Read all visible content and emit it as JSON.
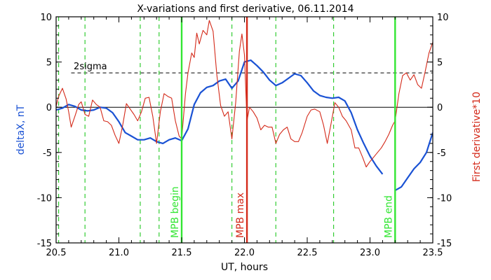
{
  "chart_data": {
    "type": "line",
    "title": "X-variations and first derivative, 06.11.2014",
    "xlabel": "UT, hours",
    "ylabel_left": "deltaX, nT",
    "ylabel_right": "First derivative*10",
    "xlim": [
      20.5,
      23.5
    ],
    "ylim": [
      -15,
      10
    ],
    "x_ticks": [
      "20.5",
      "21.0",
      "21.5",
      "22.0",
      "22.5",
      "23.0",
      "23.5"
    ],
    "y_ticks_left": [
      "10",
      "5",
      "0",
      "-5",
      "-10",
      "-15"
    ],
    "y_ticks_right": [
      "10",
      "5",
      "0",
      "-5",
      "-10",
      "-15"
    ],
    "sigma_level": 3.8,
    "sigma_label": "2sigma",
    "zero_line": 0,
    "colors": {
      "deltaX": "#1a52d4",
      "derivative": "#d42a1a",
      "mpb_boundary": "#33e633",
      "mpb_max": "#d42a1a",
      "substorm_marks": "#33cc33",
      "axes": "#000000"
    },
    "dashed_markers": [
      20.52,
      20.73,
      21.17,
      21.32,
      21.9,
      22.25,
      22.71
    ],
    "vertical_lines": [
      {
        "x": 21.5,
        "label": "MPB begin",
        "kind": "mpb_boundary"
      },
      {
        "x": 22.02,
        "label": "MPB max",
        "kind": "mpb_max"
      },
      {
        "x": 23.2,
        "label": "MPB end",
        "kind": "mpb_boundary"
      }
    ],
    "series": [
      {
        "name": "deltaX",
        "axis": "left",
        "segments": [
          [
            [
              20.5,
              -0.3
            ],
            [
              20.55,
              -0.1
            ],
            [
              20.6,
              0.3
            ],
            [
              20.65,
              0.1
            ],
            [
              20.7,
              -0.3
            ],
            [
              20.75,
              -0.4
            ],
            [
              20.8,
              -0.3
            ],
            [
              20.85,
              0.0
            ],
            [
              20.9,
              -0.1
            ],
            [
              20.95,
              -0.6
            ],
            [
              21.0,
              -1.6
            ],
            [
              21.05,
              -2.8
            ],
            [
              21.1,
              -3.2
            ],
            [
              21.15,
              -3.6
            ],
            [
              21.2,
              -3.6
            ],
            [
              21.25,
              -3.4
            ],
            [
              21.3,
              -3.8
            ],
            [
              21.35,
              -4.0
            ],
            [
              21.4,
              -3.6
            ],
            [
              21.45,
              -3.4
            ],
            [
              21.5,
              -3.7
            ],
            [
              21.55,
              -2.4
            ],
            [
              21.6,
              0.3
            ],
            [
              21.65,
              1.6
            ],
            [
              21.7,
              2.2
            ],
            [
              21.75,
              2.4
            ],
            [
              21.8,
              2.9
            ],
            [
              21.85,
              3.1
            ],
            [
              21.9,
              2.1
            ],
            [
              21.95,
              2.9
            ],
            [
              22.0,
              5.0
            ],
            [
              22.05,
              5.2
            ],
            [
              22.1,
              4.6
            ],
            [
              22.15,
              3.9
            ],
            [
              22.2,
              3.0
            ],
            [
              22.25,
              2.4
            ],
            [
              22.3,
              2.7
            ],
            [
              22.35,
              3.2
            ],
            [
              22.4,
              3.7
            ],
            [
              22.45,
              3.5
            ],
            [
              22.5,
              2.7
            ],
            [
              22.55,
              1.8
            ],
            [
              22.6,
              1.3
            ],
            [
              22.65,
              1.1
            ],
            [
              22.7,
              1.0
            ],
            [
              22.75,
              1.1
            ],
            [
              22.8,
              0.7
            ],
            [
              22.85,
              -0.6
            ],
            [
              22.9,
              -2.5
            ],
            [
              22.95,
              -4.0
            ],
            [
              23.0,
              -5.4
            ],
            [
              23.05,
              -6.5
            ],
            [
              23.1,
              -7.4
            ]
          ],
          [
            [
              23.2,
              -9.2
            ],
            [
              23.25,
              -8.8
            ],
            [
              23.3,
              -7.8
            ],
            [
              23.35,
              -6.8
            ],
            [
              23.4,
              -6.1
            ],
            [
              23.45,
              -5.0
            ],
            [
              23.5,
              -2.8
            ]
          ]
        ]
      },
      {
        "name": "First derivative*10",
        "axis": "right",
        "segments": [
          [
            [
              20.5,
              0.1
            ],
            [
              20.52,
              1.2
            ],
            [
              20.55,
              2.1
            ],
            [
              20.58,
              0.9
            ],
            [
              20.6,
              -0.5
            ],
            [
              20.62,
              -2.2
            ],
            [
              20.65,
              -1.0
            ],
            [
              20.68,
              0.3
            ],
            [
              20.7,
              0.6
            ],
            [
              20.73,
              -0.8
            ],
            [
              20.76,
              -1.0
            ],
            [
              20.79,
              0.8
            ],
            [
              20.82,
              0.3
            ],
            [
              20.85,
              0.0
            ],
            [
              20.88,
              -1.5
            ],
            [
              20.91,
              -1.6
            ],
            [
              20.94,
              -2.0
            ],
            [
              20.97,
              -3.1
            ],
            [
              21.0,
              -4.0
            ],
            [
              21.03,
              -2.0
            ],
            [
              21.06,
              0.4
            ],
            [
              21.09,
              -0.2
            ],
            [
              21.12,
              -0.8
            ],
            [
              21.15,
              -1.5
            ],
            [
              21.18,
              -0.5
            ],
            [
              21.21,
              1.0
            ],
            [
              21.24,
              1.1
            ],
            [
              21.27,
              -1.0
            ],
            [
              21.3,
              -4.0
            ],
            [
              21.33,
              -0.5
            ],
            [
              21.36,
              1.5
            ],
            [
              21.39,
              1.2
            ],
            [
              21.42,
              1.0
            ],
            [
              21.45,
              -1.5
            ],
            [
              21.48,
              -3.2
            ],
            [
              21.5,
              -3.5
            ],
            [
              21.53,
              1.5
            ],
            [
              21.55,
              3.8
            ],
            [
              21.58,
              6.0
            ],
            [
              21.6,
              5.5
            ],
            [
              21.62,
              8.2
            ],
            [
              21.64,
              7.0
            ],
            [
              21.67,
              8.5
            ],
            [
              21.7,
              8.0
            ],
            [
              21.72,
              9.6
            ],
            [
              21.75,
              8.4
            ],
            [
              21.78,
              3.6
            ],
            [
              21.81,
              0.2
            ],
            [
              21.84,
              -1.0
            ],
            [
              21.87,
              -0.5
            ],
            [
              21.9,
              -3.5
            ],
            [
              21.93,
              0.5
            ],
            [
              21.96,
              6.2
            ],
            [
              21.98,
              8.1
            ],
            [
              22.0,
              5.8
            ],
            [
              22.02,
              -1.5
            ],
            [
              22.04,
              0.0
            ],
            [
              22.07,
              -0.5
            ],
            [
              22.1,
              -1.2
            ],
            [
              22.13,
              -2.5
            ],
            [
              22.16,
              -2.0
            ],
            [
              22.19,
              -2.2
            ],
            [
              22.22,
              -2.2
            ],
            [
              22.25,
              -4.0
            ],
            [
              22.28,
              -3.0
            ],
            [
              22.31,
              -2.5
            ],
            [
              22.34,
              -2.2
            ],
            [
              22.37,
              -3.5
            ],
            [
              22.4,
              -3.8
            ],
            [
              22.43,
              -3.8
            ],
            [
              22.46,
              -2.8
            ],
            [
              22.5,
              -1.0
            ],
            [
              22.53,
              -0.3
            ],
            [
              22.56,
              -0.2
            ],
            [
              22.6,
              -0.5
            ],
            [
              22.63,
              -2.0
            ],
            [
              22.66,
              -4.0
            ],
            [
              22.69,
              -1.8
            ],
            [
              22.72,
              0.5
            ],
            [
              22.75,
              0.0
            ],
            [
              22.78,
              -1.0
            ],
            [
              22.81,
              -1.5
            ],
            [
              22.85,
              -2.5
            ],
            [
              22.88,
              -4.5
            ],
            [
              22.91,
              -4.5
            ],
            [
              22.94,
              -5.5
            ],
            [
              22.97,
              -6.6
            ],
            [
              23.0,
              -6.0
            ],
            [
              23.03,
              -5.5
            ],
            [
              23.06,
              -5.0
            ],
            [
              23.09,
              -4.5
            ],
            [
              23.12,
              -3.8
            ],
            [
              23.15,
              -3.0
            ],
            [
              23.18,
              -2.0
            ],
            [
              23.2,
              -1.5
            ],
            [
              23.23,
              1.5
            ],
            [
              23.26,
              3.5
            ],
            [
              23.29,
              3.8
            ],
            [
              23.32,
              3.0
            ],
            [
              23.35,
              3.6
            ],
            [
              23.38,
              2.5
            ],
            [
              23.41,
              2.1
            ],
            [
              23.44,
              4.0
            ],
            [
              23.47,
              6.0
            ],
            [
              23.5,
              7.2
            ]
          ]
        ]
      }
    ]
  }
}
